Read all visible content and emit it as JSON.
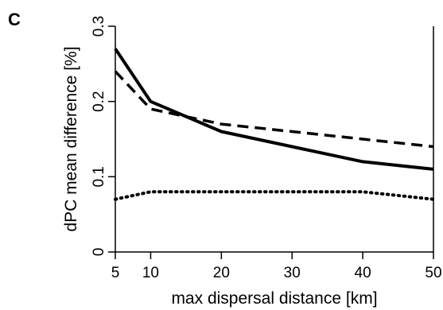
{
  "panel_label": "C",
  "chart_data": {
    "type": "line",
    "x": [
      5,
      10,
      20,
      30,
      40,
      50
    ],
    "xlabel": "max dispersal distance [km]",
    "ylabel": "dPC mean difference [%]",
    "xlim": [
      5,
      50
    ],
    "ylim": [
      0,
      0.3
    ],
    "xticks": [
      5,
      10,
      20,
      30,
      40,
      50
    ],
    "yticks": [
      0,
      0.1,
      0.2,
      0.3
    ],
    "ytick_labels": [
      "0",
      "0.1",
      "0.2",
      "0.3"
    ],
    "grid": false,
    "legend": "none",
    "series": [
      {
        "style": "solid",
        "values": [
          0.27,
          0.2,
          0.16,
          0.14,
          0.12,
          0.11
        ]
      },
      {
        "style": "dashed",
        "values": [
          0.24,
          0.19,
          0.17,
          0.16,
          0.15,
          0.14
        ]
      },
      {
        "style": "dotted",
        "values": [
          0.07,
          0.08,
          0.08,
          0.08,
          0.08,
          0.07
        ]
      }
    ]
  }
}
